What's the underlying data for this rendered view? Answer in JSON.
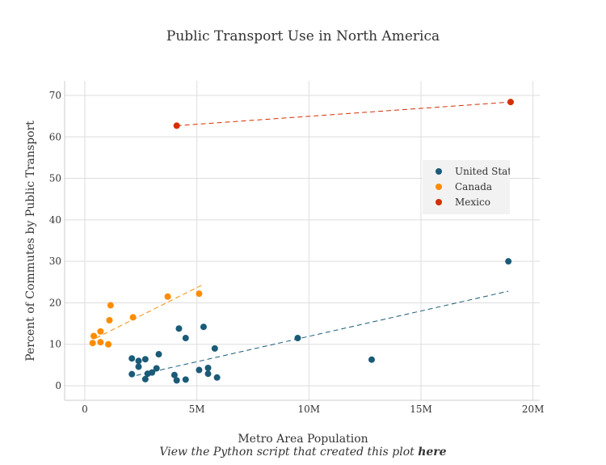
{
  "chart_data": {
    "type": "scatter",
    "title": "Public Transport Use in North America",
    "xlabel": "Metro Area Population",
    "ylabel": "Percent of Commutes by Public Transport",
    "xlim": [
      -0.9,
      20.3
    ],
    "ylim": [
      -3.5,
      73.5
    ],
    "x_unit": "millions",
    "xticks": [
      0,
      5,
      10,
      15,
      20
    ],
    "xtick_labels": [
      "0",
      "5M",
      "10M",
      "15M",
      "20M"
    ],
    "yticks": [
      0,
      10,
      20,
      30,
      40,
      50,
      60,
      70
    ],
    "ytick_labels": [
      "0",
      "10",
      "20",
      "30",
      "40",
      "50",
      "60",
      "70"
    ],
    "grid": true,
    "legend_position": "right",
    "series": [
      {
        "name": "United States",
        "color": "#1a5b78",
        "trendline": [
          [
            2.3,
            2.5
          ],
          [
            18.9,
            22.8
          ]
        ],
        "points": [
          [
            18.9,
            30.0
          ],
          [
            12.8,
            6.3
          ],
          [
            9.5,
            11.5
          ],
          [
            5.8,
            9.0
          ],
          [
            5.3,
            14.2
          ],
          [
            4.5,
            11.5
          ],
          [
            4.2,
            13.8
          ],
          [
            3.3,
            7.6
          ],
          [
            2.7,
            6.4
          ],
          [
            2.4,
            6.0
          ],
          [
            2.1,
            6.6
          ],
          [
            2.4,
            4.6
          ],
          [
            3.2,
            4.2
          ],
          [
            3.0,
            3.2
          ],
          [
            2.8,
            2.9
          ],
          [
            2.1,
            2.8
          ],
          [
            2.7,
            1.6
          ],
          [
            4.0,
            2.6
          ],
          [
            4.1,
            1.3
          ],
          [
            4.5,
            1.5
          ],
          [
            5.1,
            3.8
          ],
          [
            5.5,
            4.3
          ],
          [
            5.5,
            2.9
          ],
          [
            5.9,
            2.0
          ]
        ]
      },
      {
        "name": "Canada",
        "color": "#ff8c00",
        "trendline": [
          [
            0.5,
            11.5
          ],
          [
            5.2,
            24.2
          ]
        ],
        "points": [
          [
            0.35,
            10.3
          ],
          [
            0.4,
            12.0
          ],
          [
            0.7,
            13.1
          ],
          [
            0.7,
            10.5
          ],
          [
            1.05,
            10.0
          ],
          [
            1.1,
            15.8
          ],
          [
            1.15,
            19.4
          ],
          [
            2.15,
            16.5
          ],
          [
            3.7,
            21.5
          ],
          [
            5.1,
            22.2
          ]
        ]
      },
      {
        "name": "Mexico",
        "color": "#d62e00",
        "trendline": [
          [
            4.1,
            62.7
          ],
          [
            19.0,
            68.4
          ]
        ],
        "points": [
          [
            4.1,
            62.7
          ],
          [
            19.0,
            68.4
          ]
        ]
      }
    ]
  },
  "footer": {
    "text": "View the Python script that created this plot ",
    "link": "here"
  }
}
